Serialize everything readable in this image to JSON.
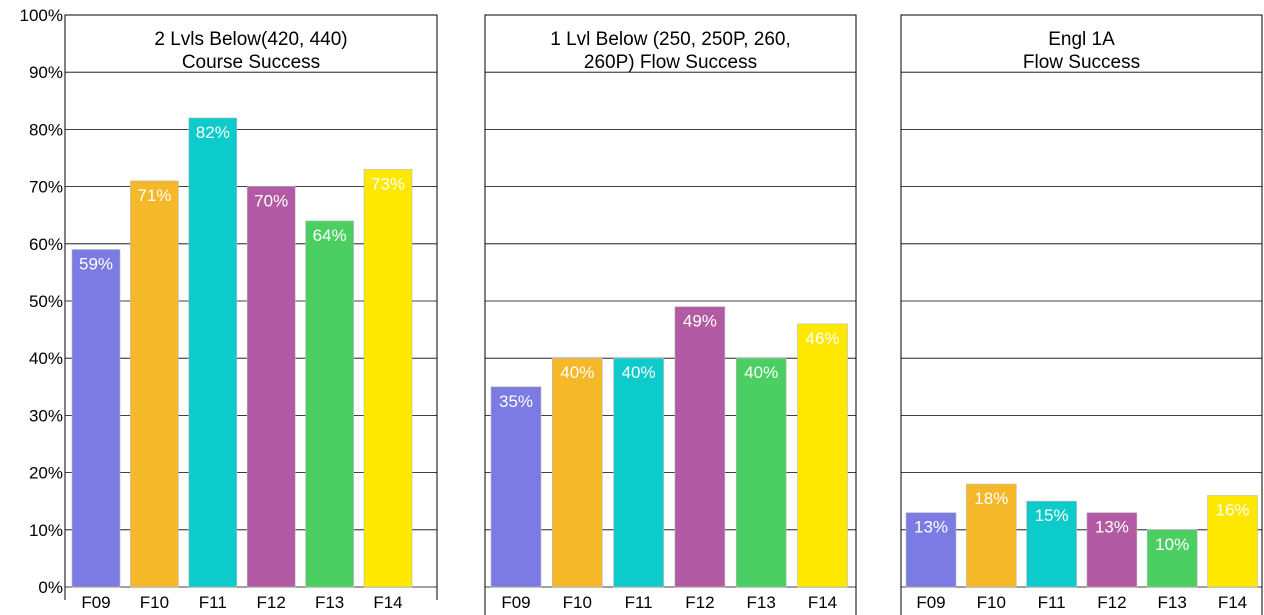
{
  "chart_data": [
    {
      "type": "bar",
      "title_lines": [
        "2 Lvls Below(420, 440)",
        "Course Success"
      ],
      "categories": [
        "F09",
        "F10",
        "F11",
        "F12",
        "F13",
        "F14"
      ],
      "values": [
        59,
        71,
        82,
        70,
        64,
        73
      ],
      "value_labels": [
        "59%",
        "71%",
        "82%",
        "70%",
        "64%",
        "73%"
      ],
      "colors": [
        "#7b7be3",
        "#f5b829",
        "#0ecbcb",
        "#b25aa3",
        "#4bcf63",
        "#ffe800"
      ],
      "ylim": [
        0,
        100
      ],
      "yticks": [
        "0%",
        "10%",
        "20%",
        "30%",
        "40%",
        "50%",
        "60%",
        "70%",
        "80%",
        "90%",
        "100%"
      ],
      "grid": true
    },
    {
      "type": "bar",
      "title_lines": [
        "1 Lvl Below (250, 250P, 260,",
        "260P) Flow Success"
      ],
      "categories": [
        "F09",
        "F10",
        "F11",
        "F12",
        "F13",
        "F14"
      ],
      "values": [
        35,
        40,
        40,
        49,
        40,
        46
      ],
      "value_labels": [
        "35%",
        "40%",
        "40%",
        "49%",
        "40%",
        "46%"
      ],
      "colors": [
        "#7b7be3",
        "#f5b829",
        "#0ecbcb",
        "#b25aa3",
        "#4bcf63",
        "#ffe800"
      ],
      "ylim": [
        0,
        100
      ],
      "grid": true
    },
    {
      "type": "bar",
      "title_lines": [
        "Engl 1A",
        "Flow Success"
      ],
      "categories": [
        "F09",
        "F10",
        "F11",
        "F12",
        "F13",
        "F14"
      ],
      "values": [
        13,
        18,
        15,
        13,
        10,
        16
      ],
      "value_labels": [
        "13%",
        "18%",
        "15%",
        "13%",
        "10%",
        "16%"
      ],
      "colors": [
        "#7b7be3",
        "#f5b829",
        "#0ecbcb",
        "#b25aa3",
        "#4bcf63",
        "#ffe800"
      ],
      "ylim": [
        0,
        100
      ],
      "grid": true
    }
  ]
}
